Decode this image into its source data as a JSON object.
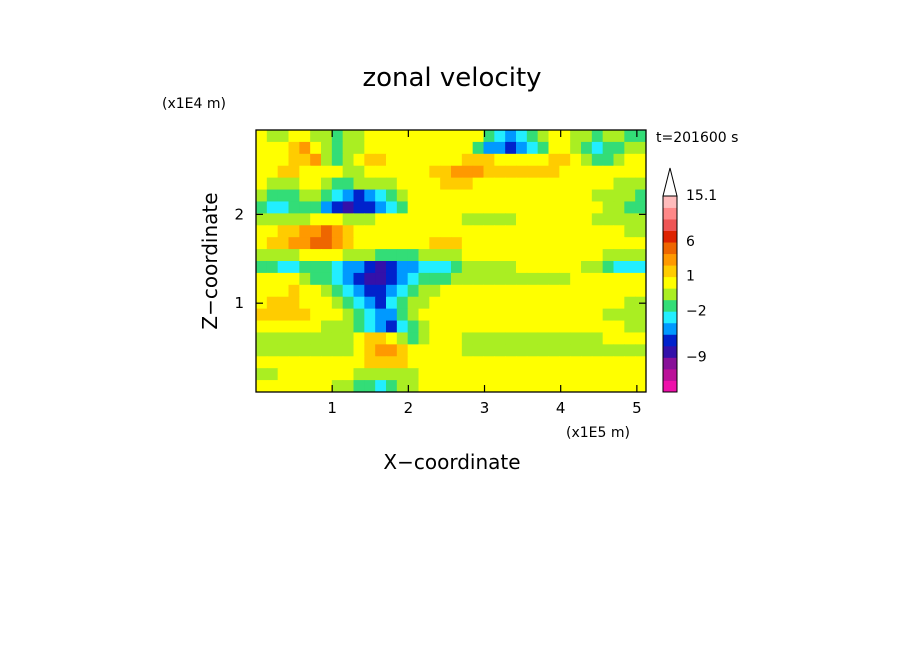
{
  "chart_data": {
    "type": "heatmap",
    "title": "zonal velocity",
    "xlabel": "X−coordinate",
    "ylabel": "Z−coordinate",
    "x_scale_label": "(x1E5 m)",
    "y_scale_label": "(x1E4 m)",
    "time_label": "t=201600 s",
    "xlim": [
      0,
      5.12
    ],
    "ylim": [
      0,
      2.95
    ],
    "x_ticks": [
      {
        "value": 1,
        "label": "1"
      },
      {
        "value": 2,
        "label": "2"
      },
      {
        "value": 3,
        "label": "3"
      },
      {
        "value": 4,
        "label": "4"
      },
      {
        "value": 5,
        "label": "5"
      }
    ],
    "y_ticks": [
      {
        "value": 1,
        "label": "1"
      },
      {
        "value": 2,
        "label": "2"
      }
    ],
    "colorbar": {
      "levels": [
        {
          "color": "#ee11aa"
        },
        {
          "color": "#bb1199"
        },
        {
          "color": "#881199"
        },
        {
          "color": "#3311aa"
        },
        {
          "color": "#0022cc"
        },
        {
          "color": "#0099ff"
        },
        {
          "color": "#22eeff"
        },
        {
          "color": "#33dd77"
        },
        {
          "color": "#aaee22"
        },
        {
          "color": "#ffff00"
        },
        {
          "color": "#ffcc00"
        },
        {
          "color": "#ff9900"
        },
        {
          "color": "#ee6600"
        },
        {
          "color": "#dd2200"
        },
        {
          "color": "#ee5555"
        },
        {
          "color": "#ff8888"
        },
        {
          "color": "#ffbbbb"
        }
      ],
      "labels": [
        {
          "value": "15.1",
          "level": 16
        },
        {
          "value": "6",
          "level": 12
        },
        {
          "value": "1",
          "level": 9
        },
        {
          "value": "−2",
          "level": 6
        },
        {
          "value": "−9",
          "level": 2
        }
      ]
    },
    "field": {
      "rows": [
        [
          9,
          8,
          8,
          9,
          9,
          8,
          8,
          7,
          8,
          8,
          9,
          9,
          9,
          9,
          9,
          9,
          9,
          9,
          9,
          9,
          9,
          7,
          6,
          5,
          6,
          7,
          8,
          9,
          9,
          8,
          8,
          7,
          8,
          8,
          7,
          7
        ],
        [
          9,
          9,
          9,
          10,
          11,
          9,
          8,
          7,
          8,
          8,
          9,
          9,
          9,
          9,
          9,
          9,
          9,
          9,
          9,
          9,
          7,
          5,
          5,
          4,
          5,
          6,
          7,
          9,
          9,
          8,
          7,
          6,
          7,
          7,
          8,
          8
        ],
        [
          9,
          9,
          9,
          10,
          10,
          11,
          8,
          7,
          8,
          9,
          10,
          10,
          9,
          9,
          9,
          9,
          9,
          9,
          9,
          10,
          10,
          10,
          9,
          9,
          9,
          9,
          9,
          10,
          10,
          9,
          8,
          7,
          7,
          8,
          9,
          9
        ],
        [
          9,
          9,
          10,
          10,
          9,
          9,
          9,
          9,
          8,
          8,
          9,
          9,
          9,
          9,
          9,
          9,
          10,
          10,
          11,
          11,
          11,
          10,
          10,
          10,
          10,
          10,
          10,
          10,
          9,
          9,
          9,
          9,
          9,
          9,
          9,
          9
        ],
        [
          9,
          8,
          8,
          8,
          9,
          9,
          8,
          7,
          7,
          8,
          8,
          8,
          8,
          9,
          9,
          9,
          9,
          10,
          10,
          10,
          9,
          9,
          9,
          9,
          9,
          9,
          9,
          9,
          9,
          9,
          9,
          9,
          9,
          8,
          8,
          8
        ],
        [
          8,
          7,
          7,
          7,
          8,
          8,
          7,
          6,
          5,
          4,
          5,
          6,
          7,
          8,
          9,
          9,
          9,
          9,
          9,
          9,
          9,
          9,
          9,
          9,
          9,
          9,
          9,
          9,
          9,
          9,
          9,
          8,
          8,
          8,
          8,
          7
        ],
        [
          7,
          6,
          6,
          7,
          7,
          7,
          5,
          4,
          3,
          4,
          4,
          5,
          6,
          7,
          9,
          9,
          9,
          9,
          9,
          9,
          9,
          9,
          9,
          9,
          9,
          9,
          9,
          9,
          9,
          9,
          9,
          9,
          8,
          8,
          7,
          7
        ],
        [
          8,
          8,
          8,
          8,
          8,
          9,
          9,
          9,
          8,
          8,
          8,
          9,
          9,
          9,
          9,
          9,
          9,
          9,
          9,
          8,
          8,
          8,
          8,
          8,
          9,
          9,
          9,
          9,
          9,
          9,
          9,
          8,
          8,
          8,
          8,
          8
        ],
        [
          9,
          9,
          10,
          10,
          11,
          11,
          12,
          11,
          10,
          9,
          9,
          9,
          9,
          9,
          9,
          9,
          9,
          9,
          9,
          9,
          9,
          9,
          9,
          9,
          9,
          9,
          9,
          9,
          9,
          9,
          9,
          9,
          9,
          9,
          8,
          8
        ],
        [
          9,
          10,
          10,
          11,
          11,
          12,
          12,
          11,
          10,
          9,
          9,
          9,
          9,
          9,
          9,
          9,
          10,
          10,
          10,
          9,
          9,
          9,
          9,
          9,
          9,
          9,
          9,
          9,
          9,
          9,
          9,
          9,
          9,
          9,
          9,
          9
        ],
        [
          8,
          8,
          8,
          8,
          9,
          9,
          9,
          9,
          8,
          8,
          8,
          7,
          7,
          7,
          7,
          8,
          8,
          8,
          8,
          9,
          9,
          9,
          9,
          9,
          9,
          9,
          9,
          9,
          9,
          9,
          9,
          9,
          8,
          8,
          8,
          8
        ],
        [
          7,
          7,
          6,
          6,
          7,
          7,
          7,
          6,
          5,
          5,
          4,
          3,
          4,
          5,
          5,
          6,
          6,
          6,
          7,
          8,
          8,
          8,
          8,
          8,
          9,
          9,
          9,
          9,
          9,
          9,
          8,
          8,
          7,
          6,
          6,
          6
        ],
        [
          9,
          9,
          9,
          9,
          8,
          7,
          7,
          6,
          5,
          4,
          3,
          3,
          4,
          5,
          6,
          7,
          7,
          7,
          8,
          8,
          8,
          8,
          8,
          8,
          8,
          8,
          8,
          8,
          8,
          9,
          9,
          9,
          9,
          9,
          9,
          9
        ],
        [
          9,
          9,
          9,
          10,
          9,
          9,
          8,
          7,
          6,
          5,
          4,
          4,
          5,
          6,
          7,
          8,
          8,
          9,
          9,
          9,
          9,
          9,
          9,
          9,
          9,
          9,
          9,
          9,
          9,
          9,
          9,
          9,
          9,
          9,
          9,
          9
        ],
        [
          9,
          10,
          10,
          10,
          9,
          9,
          9,
          8,
          7,
          6,
          5,
          4,
          6,
          7,
          8,
          8,
          9,
          9,
          9,
          9,
          9,
          9,
          9,
          9,
          9,
          9,
          9,
          9,
          9,
          9,
          9,
          9,
          9,
          9,
          8,
          8
        ],
        [
          10,
          10,
          10,
          10,
          10,
          9,
          9,
          9,
          8,
          7,
          6,
          5,
          5,
          7,
          8,
          9,
          9,
          9,
          9,
          9,
          9,
          9,
          9,
          9,
          9,
          9,
          9,
          9,
          9,
          9,
          9,
          9,
          8,
          8,
          8,
          8
        ],
        [
          9,
          9,
          9,
          9,
          9,
          9,
          8,
          8,
          8,
          7,
          6,
          5,
          4,
          6,
          7,
          8,
          9,
          9,
          9,
          9,
          9,
          9,
          9,
          9,
          9,
          9,
          9,
          9,
          9,
          9,
          9,
          9,
          9,
          9,
          8,
          8
        ],
        [
          8,
          8,
          8,
          8,
          8,
          8,
          8,
          8,
          8,
          9,
          10,
          10,
          9,
          8,
          7,
          8,
          9,
          9,
          9,
          8,
          8,
          8,
          8,
          8,
          8,
          8,
          8,
          8,
          8,
          8,
          8,
          8,
          9,
          9,
          9,
          9
        ],
        [
          8,
          8,
          8,
          8,
          8,
          8,
          8,
          8,
          8,
          9,
          10,
          11,
          11,
          10,
          9,
          9,
          9,
          9,
          9,
          8,
          8,
          8,
          8,
          8,
          8,
          8,
          8,
          8,
          8,
          8,
          8,
          8,
          8,
          8,
          8,
          8
        ],
        [
          9,
          9,
          9,
          9,
          9,
          9,
          9,
          9,
          9,
          9,
          10,
          10,
          10,
          10,
          9,
          9,
          9,
          9,
          9,
          9,
          9,
          9,
          9,
          9,
          9,
          9,
          9,
          9,
          9,
          9,
          9,
          9,
          9,
          9,
          9,
          9
        ],
        [
          8,
          8,
          9,
          9,
          9,
          9,
          9,
          9,
          9,
          8,
          8,
          8,
          8,
          8,
          8,
          9,
          9,
          9,
          9,
          9,
          9,
          9,
          9,
          9,
          9,
          9,
          9,
          9,
          9,
          9,
          9,
          9,
          9,
          9,
          9,
          9
        ],
        [
          9,
          9,
          9,
          9,
          9,
          9,
          9,
          8,
          8,
          7,
          7,
          6,
          7,
          8,
          8,
          9,
          9,
          9,
          9,
          9,
          9,
          9,
          9,
          9,
          9,
          9,
          9,
          9,
          9,
          9,
          9,
          9,
          9,
          9,
          9,
          9
        ]
      ]
    }
  }
}
